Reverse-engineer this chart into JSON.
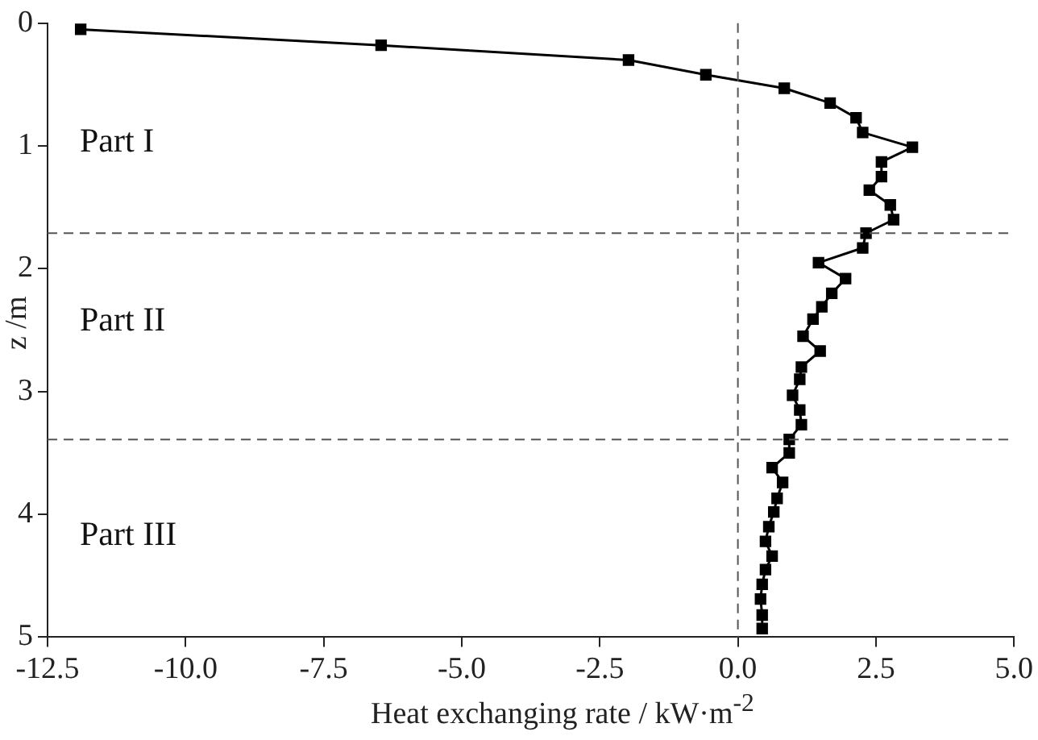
{
  "chart_data": {
    "type": "line",
    "xlabel": "Heat exchanging rate / kW·m$^{-2}$",
    "ylabel": "z /m",
    "x": [
      -11.9,
      -6.46,
      -1.98,
      -0.58,
      0.84,
      1.67,
      2.14,
      2.26,
      3.16,
      2.6,
      2.6,
      2.38,
      2.76,
      2.82,
      2.32,
      2.26,
      1.46,
      1.95,
      1.7,
      1.52,
      1.36,
      1.18,
      1.49,
      1.15,
      1.12,
      0.99,
      1.12,
      1.15,
      0.93,
      0.93,
      0.62,
      0.81,
      0.71,
      0.65,
      0.56,
      0.5,
      0.62,
      0.5,
      0.44,
      0.41,
      0.44,
      0.44
    ],
    "series": [
      {
        "color": "#000000",
        "values": [
          0.05,
          0.18,
          0.3,
          0.42,
          0.53,
          0.65,
          0.77,
          0.89,
          1.01,
          1.13,
          1.25,
          1.36,
          1.48,
          1.6,
          1.71,
          1.83,
          1.95,
          2.08,
          2.2,
          2.31,
          2.41,
          2.55,
          2.67,
          2.8,
          2.9,
          3.03,
          3.15,
          3.27,
          3.39,
          3.5,
          3.62,
          3.74,
          3.87,
          3.98,
          4.1,
          4.22,
          4.34,
          4.45,
          4.57,
          4.69,
          4.82,
          4.93
        ]
      }
    ],
    "xlim": [
      -12.5,
      5
    ],
    "xticks": [
      {
        "value": -12.5,
        "label": "-12.5"
      },
      {
        "value": -10,
        "label": "-10.0"
      },
      {
        "value": -7.5,
        "label": "-7.5"
      },
      {
        "value": -5,
        "label": "-5.0"
      },
      {
        "value": -2.5,
        "label": "-2.5"
      },
      {
        "value": 0,
        "label": "0.0"
      },
      {
        "value": 2.5,
        "label": "2.5"
      },
      {
        "value": 5,
        "label": "5.0"
      }
    ],
    "ylim": [
      5,
      0
    ],
    "yticks": [
      0,
      1,
      2,
      3,
      4,
      5
    ],
    "ref_lines": [
      {
        "axis": "x",
        "value": 0,
        "line_style": "dashed",
        "color": "#555555"
      },
      {
        "axis": "y",
        "value": 1.71,
        "line_style": "dashed",
        "color": "#555555"
      },
      {
        "axis": "y",
        "value": 3.39,
        "line_style": "dashed",
        "color": "#555555"
      }
    ],
    "annotations": [
      "Part I",
      "Part II",
      "Part III"
    ],
    "marker": "square",
    "line_style": "solid",
    "grid": false,
    "legend": false
  }
}
